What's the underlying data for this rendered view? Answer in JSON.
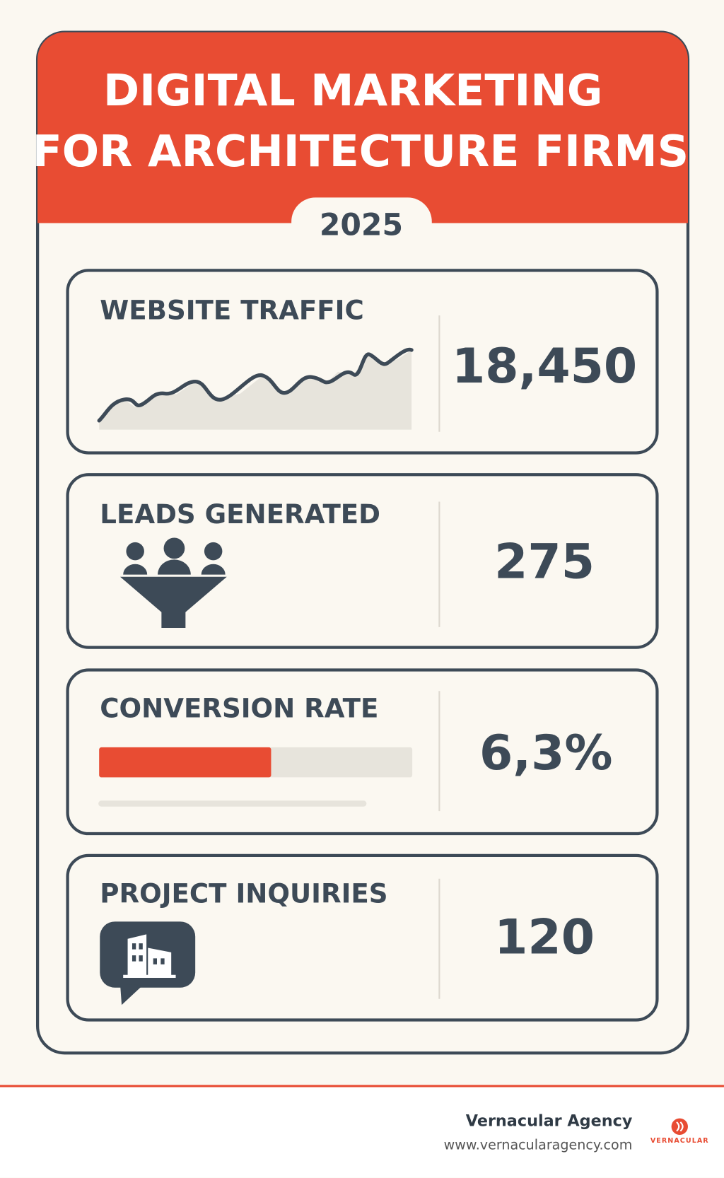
{
  "header": {
    "title_lines": [
      "DIGITAL MARKETING",
      "FOR ARCHITECTURE FIRMS"
    ],
    "year": "2025"
  },
  "cards": [
    {
      "label": "WEBSITE TRAFFIC",
      "value": "18,450"
    },
    {
      "label": "LEADS GENERATED",
      "value": "275"
    },
    {
      "label": "CONVERSION RATE",
      "value": "6,3%"
    },
    {
      "label": "PROJECT INQUIRIES",
      "value": "120"
    }
  ],
  "footer": {
    "agency": "Vernacular Agency",
    "url": "www.vernacularagency.com",
    "logo": "VERNACULAR"
  }
}
